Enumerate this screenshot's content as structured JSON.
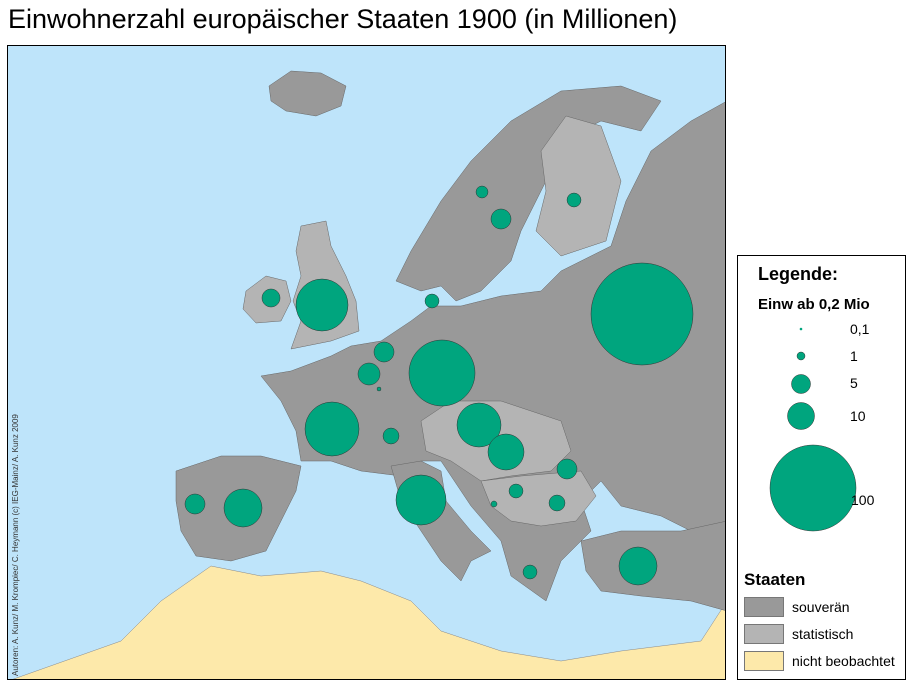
{
  "title": "Einwohnerzahl europäischer Staaten 1900 (in Millionen)",
  "credit": "Autoren: A. Kunz/ M. Krompiec/ C. Heymann (c) IEG-Mainz/ A. Kunz 2009",
  "colors": {
    "sea": "#bee4fa",
    "souveraen": "#999999",
    "statistisch": "#b4b4b4",
    "nicht_beobachtet": "#fde9aa",
    "circle": "#00a57e"
  },
  "legend": {
    "title": "Legende:",
    "subtitle": "Einw ab 0,2 Mio",
    "sizes": [
      {
        "label": "0,1",
        "value": 0.1
      },
      {
        "label": "1",
        "value": 1
      },
      {
        "label": "5",
        "value": 5
      },
      {
        "label": "10",
        "value": 10
      },
      {
        "label": "100",
        "value": 100
      }
    ],
    "states_title": "Staaten",
    "states": [
      {
        "label": "souverän",
        "key": "souveraen"
      },
      {
        "label": "statistisch",
        "key": "statistisch"
      },
      {
        "label": "nicht beobachtet",
        "key": "nicht_beobachtet"
      }
    ]
  }
}
